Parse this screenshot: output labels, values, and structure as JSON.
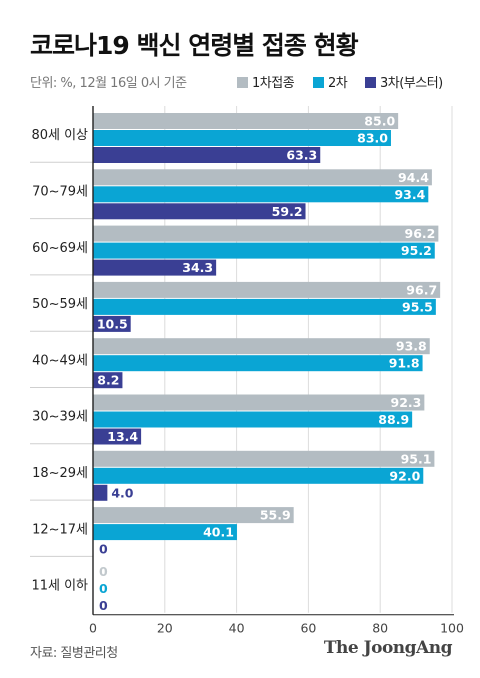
{
  "header": {
    "title": "코로나19 백신 연령별 접종 현황",
    "unit": "단위: %, 12월 16일 0시 기준"
  },
  "legend": [
    {
      "label": "1차접종",
      "color": "#b3bcc2"
    },
    {
      "label": "2차",
      "color": "#0aa5d4"
    },
    {
      "label": "3차(부스터)",
      "color": "#3a3f94"
    }
  ],
  "footer": {
    "source": "자료: 질병관리청",
    "brand": "The JoongAng"
  },
  "chart_data": {
    "type": "bar",
    "orientation": "horizontal",
    "categories": [
      "80세 이상",
      "70~79세",
      "60~69세",
      "50~59세",
      "40~49세",
      "30~39세",
      "18~29세",
      "12~17세",
      "11세 이하"
    ],
    "series": [
      {
        "name": "1차접종",
        "color": "#b3bcc2",
        "values": [
          85.0,
          94.4,
          96.2,
          96.7,
          93.8,
          92.3,
          95.1,
          55.9,
          0
        ]
      },
      {
        "name": "2차",
        "color": "#0aa5d4",
        "values": [
          83.0,
          93.4,
          95.2,
          95.5,
          91.8,
          88.9,
          92.0,
          40.1,
          0
        ]
      },
      {
        "name": "3차(부스터)",
        "color": "#3a3f94",
        "values": [
          63.3,
          59.2,
          34.3,
          10.5,
          8.2,
          13.4,
          4.0,
          0,
          0
        ]
      }
    ],
    "value_labels": [
      [
        "85.0",
        "83.0",
        "63.3"
      ],
      [
        "94.4",
        "93.4",
        "59.2"
      ],
      [
        "96.2",
        "95.2",
        "34.3"
      ],
      [
        "96.7",
        "95.5",
        "10.5"
      ],
      [
        "93.8",
        "91.8",
        "8.2"
      ],
      [
        "92.3",
        "88.9",
        "13.4"
      ],
      [
        "95.1",
        "92.0",
        "4.0"
      ],
      [
        "55.9",
        "40.1",
        "0"
      ],
      [
        "0",
        "0",
        "0"
      ]
    ],
    "xlim": [
      0,
      100
    ],
    "x_ticks": [
      0,
      20,
      40,
      60,
      80,
      100
    ],
    "grid": true,
    "legend_position": "top-right"
  }
}
